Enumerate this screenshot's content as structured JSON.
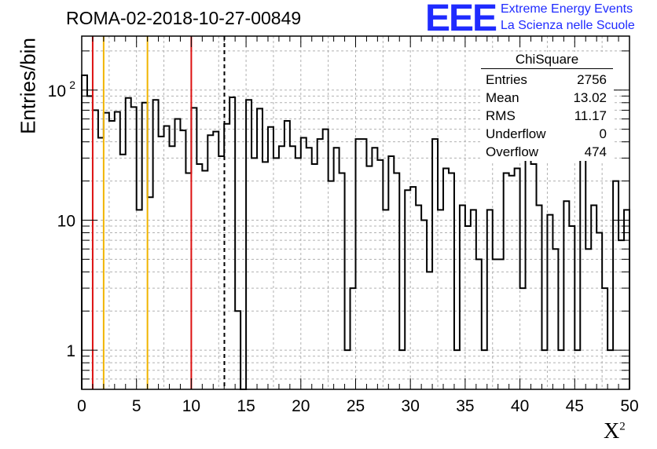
{
  "header": {
    "title": "ROMA-02-2018-10-27-00849",
    "logo_text": "EEE",
    "logo_line1": "Extreme Energy Events",
    "logo_line2": "La Scienza nelle Scuole"
  },
  "stats_box": {
    "title": "ChiSquare",
    "rows": [
      {
        "label": "Entries",
        "value": "2756"
      },
      {
        "label": "Mean",
        "value": "13.02"
      },
      {
        "label": "RMS",
        "value": "11.17"
      },
      {
        "label": "Underflow",
        "value": "0"
      },
      {
        "label": "Overflow",
        "value": "474"
      }
    ]
  },
  "colors": {
    "red_line": "#dd1111",
    "orange_line": "#f0b400",
    "logo_blue": "#1f2bff",
    "grid": "#b0b0b0"
  },
  "chart_data": {
    "type": "histogram",
    "title": "ROMA-02-2018-10-27-00849",
    "xlabel": "X",
    "xlabel_superscript": "2",
    "ylabel": "Entries/bin",
    "xlim": [
      0,
      50
    ],
    "ylim": [
      0.5,
      260
    ],
    "yscale": "log",
    "grid": true,
    "bin_width": 0.5,
    "x_ticks": [
      "0",
      "5",
      "10",
      "15",
      "20",
      "25",
      "30",
      "35",
      "40",
      "45",
      "50"
    ],
    "y_ticks": [
      {
        "value": 1,
        "base": "1",
        "exp": ""
      },
      {
        "value": 10,
        "base": "10",
        "exp": ""
      },
      {
        "value": 100,
        "base": "10",
        "exp": "2"
      }
    ],
    "values": [
      130,
      90,
      70,
      43,
      67,
      58,
      68,
      32,
      87,
      74,
      12,
      80,
      15,
      84,
      44,
      53,
      37,
      60,
      49,
      23,
      73,
      27,
      24,
      45,
      48,
      31,
      55,
      88,
      2,
      0,
      84,
      30,
      72,
      28,
      52,
      30,
      37,
      58,
      37,
      30,
      43,
      36,
      27,
      42,
      50,
      20,
      36,
      23,
      1,
      3,
      42,
      42,
      26,
      36,
      29,
      12,
      31,
      23,
      1,
      17,
      18,
      13,
      10,
      4,
      42,
      12,
      25,
      23,
      1,
      13,
      9,
      12,
      5,
      1,
      12,
      5,
      5,
      23,
      22,
      25,
      3,
      29,
      27,
      13,
      1,
      11,
      6,
      1,
      14,
      9,
      1,
      31,
      6,
      13,
      8,
      3,
      1,
      20,
      7,
      12
    ],
    "vlines": [
      {
        "x": 1,
        "style": "red"
      },
      {
        "x": 2,
        "style": "orange"
      },
      {
        "x": 6,
        "style": "orange"
      },
      {
        "x": 10,
        "style": "red"
      },
      {
        "x": 13.02,
        "style": "dashed"
      }
    ]
  }
}
